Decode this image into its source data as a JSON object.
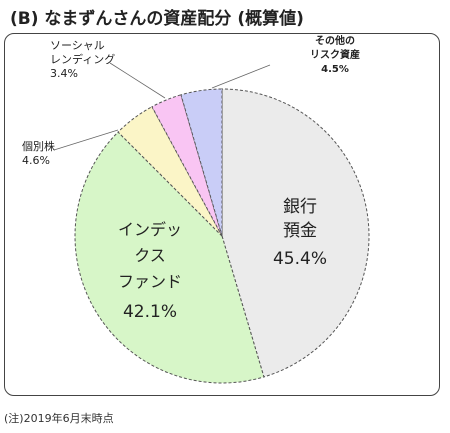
{
  "title": "(B) なまずんさんの資産配分 (概算値)",
  "footnote": "(注)2019年6月末時点",
  "chart_data": {
    "type": "pie",
    "start": "12 o'clock, clockwise",
    "slices": [
      {
        "label_lines": [
          "銀行",
          "預金"
        ],
        "value": 45.4,
        "value_text": "45.4%",
        "color": "#ebebeb"
      },
      {
        "label_lines": [
          "インデッ",
          "クス",
          "ファンド"
        ],
        "value": 42.1,
        "value_text": "42.1%",
        "color": "#d7f6c8"
      },
      {
        "label_lines": [
          "個別株"
        ],
        "value": 4.6,
        "value_text": "4.6%",
        "color": "#fbf5c7"
      },
      {
        "label_lines": [
          "ソーシャル",
          "レンディング"
        ],
        "value": 3.4,
        "value_text": "3.4%",
        "color": "#f9c5f3"
      },
      {
        "label_lines": [
          "その他の",
          "リスク資産"
        ],
        "value": 4.5,
        "value_text": "4.5%",
        "color": "#c9cdf7"
      }
    ]
  }
}
